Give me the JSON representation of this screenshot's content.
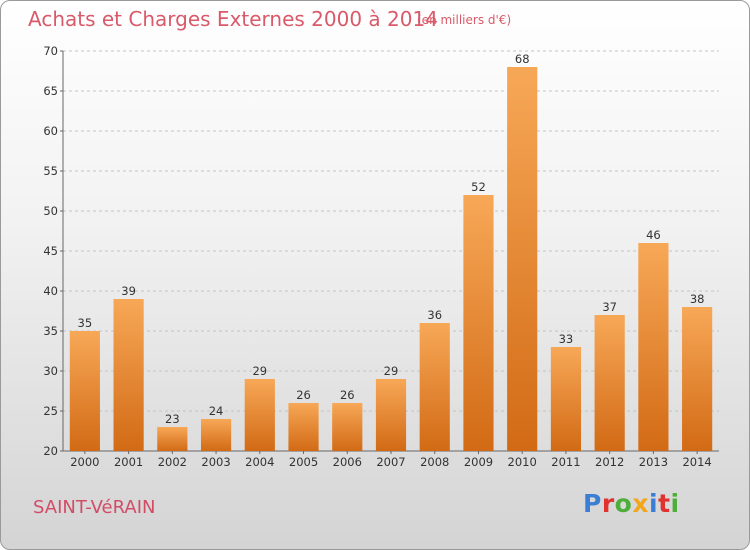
{
  "chart_data": {
    "type": "bar",
    "title": "Achats et Charges Externes 2000 à 2014",
    "subtitle": "(en milliers d'€)",
    "categories": [
      "2000",
      "2001",
      "2002",
      "2003",
      "2004",
      "2005",
      "2006",
      "2007",
      "2008",
      "2009",
      "2010",
      "2011",
      "2012",
      "2013",
      "2014"
    ],
    "values": [
      35,
      39,
      23,
      24,
      29,
      26,
      26,
      29,
      36,
      52,
      68,
      33,
      37,
      46,
      38
    ],
    "ylim": [
      20,
      70
    ],
    "yticks": [
      20,
      25,
      30,
      35,
      40,
      45,
      50,
      55,
      60,
      65,
      70
    ],
    "grid": true,
    "bar_color_light": "#f7a857",
    "bar_color_dark": "#d26a15"
  },
  "footer": {
    "city": "SAINT-VéRAIN",
    "logo": "Proxiti",
    "logo_letter_colors": [
      "#3b7fd4",
      "#e0322f",
      "#4fae3a",
      "#f2a61a",
      "#3b7fd4",
      "#e0322f",
      "#4fae3a"
    ]
  }
}
